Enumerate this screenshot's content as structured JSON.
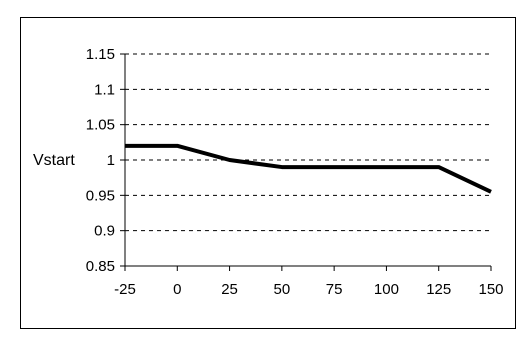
{
  "chart_data": {
    "type": "line",
    "title": "",
    "xlabel": "",
    "ylabel": "Vstart",
    "x": [
      -25,
      0,
      25,
      50,
      75,
      100,
      125,
      150
    ],
    "xticks": [
      "-25",
      "0",
      "25",
      "50",
      "75",
      "100",
      "125",
      "150"
    ],
    "yticks": [
      "0.85",
      "0.9",
      "0.95",
      "1",
      "1.05",
      "1.1",
      "1.15"
    ],
    "xlim": [
      -25,
      150
    ],
    "ylim": [
      0.85,
      1.15
    ],
    "grid": "horizontal-dashed",
    "series": [
      {
        "values": [
          1.02,
          1.02,
          1.0,
          0.99,
          0.99,
          0.99,
          0.99,
          0.955
        ]
      }
    ],
    "colors": {
      "line": "#000000",
      "grid": "#000000",
      "background": "#ffffff"
    }
  }
}
